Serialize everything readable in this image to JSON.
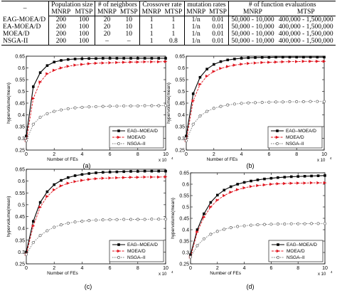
{
  "table": {
    "headers": {
      "algorithm": "–",
      "population_size": "Population size",
      "neighbors": "# of neighbors",
      "crossover": "Crossover rate",
      "mutation": "mutation rates",
      "function_evals": "# of function evaluations"
    },
    "subheaders": [
      "MNRP",
      "MTSP",
      "MNRP",
      "MTSP",
      "MNRP",
      "MTSP",
      "MNRP",
      "MTSP",
      "MNRP",
      "MTSP"
    ],
    "rows": [
      {
        "algorithm": "EAG-MOEA/D",
        "cells": [
          "200",
          "100",
          "20",
          "10",
          "1",
          "1",
          "1/n",
          "0.01",
          "50,000 - 10,000",
          "400,000 - 1,500,000"
        ]
      },
      {
        "algorithm": "EA-MOEA/D",
        "cells": [
          "200",
          "100",
          "20",
          "10",
          "1",
          "1",
          "1/n",
          "0.01",
          "50,000 - 10,000",
          "400,000 - 1,500,000"
        ]
      },
      {
        "algorithm": "MOEA/D",
        "cells": [
          "200",
          "100",
          "20",
          "10",
          "1",
          "1",
          "1/n",
          "0.01",
          "50,000 - 10,000",
          "400,000 - 1,500,000"
        ]
      },
      {
        "algorithm": "NSGA-II",
        "cells": [
          "200",
          "100",
          "–",
          "–",
          "1",
          "0.8",
          "1/n",
          "0.01",
          "50,000 - 10,000",
          "400,000 - 1,500,000"
        ]
      }
    ]
  },
  "colors": {
    "eag": "#000000",
    "moead": "#e0141e",
    "nsga": "#707070"
  },
  "chart_data": [
    {
      "type": "line",
      "panel": "(a)",
      "xlabel": "Number of FEs",
      "ylabel": "hypervolume(mean)",
      "x_exponent": "x 10",
      "x_exponent_power": "4",
      "xlim": [
        0,
        10
      ],
      "ylim": [
        0.25,
        0.65
      ],
      "xticks": [
        "0",
        "2",
        "4",
        "6",
        "8",
        "10"
      ],
      "yticks": [
        "0.25",
        "0.3",
        "0.35",
        "0.4",
        "0.45",
        "0.5",
        "0.55",
        "0.6",
        "0.65"
      ],
      "legend": "bottom-right",
      "x": [
        0,
        0.5,
        1,
        1.5,
        2,
        2.5,
        3,
        3.5,
        4,
        4.5,
        5,
        5.5,
        6,
        6.5,
        7,
        7.5,
        8,
        8.5,
        9,
        9.5,
        10
      ],
      "series": [
        {
          "name": "EAG–MOEA/D",
          "values": [
            0.31,
            0.52,
            0.58,
            0.61,
            0.625,
            0.632,
            0.636,
            0.638,
            0.639,
            0.64,
            0.64,
            0.641,
            0.641,
            0.641,
            0.641,
            0.641,
            0.641,
            0.641,
            0.641,
            0.641,
            0.641
          ]
        },
        {
          "name": "MOEA/D",
          "values": [
            0.29,
            0.47,
            0.54,
            0.575,
            0.59,
            0.6,
            0.607,
            0.612,
            0.615,
            0.618,
            0.62,
            0.621,
            0.622,
            0.623,
            0.624,
            0.625,
            0.625,
            0.626,
            0.626,
            0.626,
            0.627
          ]
        },
        {
          "name": "NSGA–II",
          "values": [
            0.29,
            0.36,
            0.39,
            0.405,
            0.415,
            0.421,
            0.426,
            0.43,
            0.432,
            0.434,
            0.435,
            0.436,
            0.437,
            0.437,
            0.438,
            0.438,
            0.438,
            0.439,
            0.439,
            0.439,
            0.44
          ]
        }
      ]
    },
    {
      "type": "line",
      "panel": "(b)",
      "xlabel": "Number of FEs",
      "ylabel": "hypervolume(mean)",
      "x_exponent": "x 10",
      "x_exponent_power": "4",
      "xlim": [
        0,
        10
      ],
      "ylim": [
        0.25,
        0.65
      ],
      "xticks": [
        "0",
        "2",
        "4",
        "6",
        "8",
        "10"
      ],
      "yticks": [
        "0.25",
        "0.3",
        "0.35",
        "0.4",
        "0.45",
        "0.5",
        "0.55",
        "0.6",
        "0.65"
      ],
      "legend": "bottom-right",
      "x": [
        0,
        0.5,
        1,
        1.5,
        2,
        2.5,
        3,
        3.5,
        4,
        4.5,
        5,
        5.5,
        6,
        6.5,
        7,
        7.5,
        8,
        8.5,
        9,
        9.5,
        10
      ],
      "series": [
        {
          "name": "EAG–MOEA/D",
          "values": [
            0.31,
            0.49,
            0.56,
            0.595,
            0.615,
            0.627,
            0.634,
            0.638,
            0.641,
            0.643,
            0.644,
            0.645,
            0.645,
            0.646,
            0.646,
            0.646,
            0.646,
            0.646,
            0.646,
            0.646,
            0.646
          ]
        },
        {
          "name": "MOEA/D",
          "values": [
            0.29,
            0.46,
            0.53,
            0.565,
            0.585,
            0.598,
            0.606,
            0.612,
            0.616,
            0.619,
            0.621,
            0.623,
            0.624,
            0.625,
            0.626,
            0.627,
            0.627,
            0.628,
            0.628,
            0.628,
            0.628
          ]
        },
        {
          "name": "NSGA–II",
          "values": [
            0.29,
            0.36,
            0.395,
            0.415,
            0.428,
            0.436,
            0.442,
            0.446,
            0.449,
            0.451,
            0.452,
            0.453,
            0.454,
            0.455,
            0.455,
            0.456,
            0.456,
            0.456,
            0.457,
            0.457,
            0.457
          ]
        }
      ]
    },
    {
      "type": "line",
      "panel": "(c)",
      "xlabel": "Number of FEs",
      "ylabel": "hypervolume(mean)",
      "x_exponent": "x 10",
      "x_exponent_power": "4",
      "xlim": [
        0,
        10
      ],
      "ylim": [
        0.25,
        0.65
      ],
      "xticks": [
        "0",
        "2",
        "4",
        "6",
        "8",
        "10"
      ],
      "yticks": [
        "0.25",
        "0.3",
        "0.35",
        "0.4",
        "0.45",
        "0.5",
        "0.55",
        "0.6",
        "0.65"
      ],
      "legend": "bottom-right",
      "x": [
        0,
        0.5,
        1,
        1.5,
        2,
        2.5,
        3,
        3.5,
        4,
        4.5,
        5,
        5.5,
        6,
        6.5,
        7,
        7.5,
        8,
        8.5,
        9,
        9.5,
        10
      ],
      "series": [
        {
          "name": "EAG–MOEA/D",
          "values": [
            0.3,
            0.43,
            0.51,
            0.555,
            0.585,
            0.603,
            0.615,
            0.623,
            0.628,
            0.632,
            0.635,
            0.637,
            0.638,
            0.639,
            0.64,
            0.641,
            0.641,
            0.642,
            0.642,
            0.642,
            0.642
          ]
        },
        {
          "name": "MOEA/D",
          "values": [
            0.29,
            0.41,
            0.49,
            0.535,
            0.563,
            0.58,
            0.591,
            0.598,
            0.603,
            0.607,
            0.61,
            0.612,
            0.613,
            0.614,
            0.615,
            0.616,
            0.616,
            0.617,
            0.617,
            0.617,
            0.618
          ]
        },
        {
          "name": "NSGA–II",
          "values": [
            0.29,
            0.34,
            0.37,
            0.39,
            0.405,
            0.415,
            0.422,
            0.427,
            0.43,
            0.433,
            0.435,
            0.436,
            0.437,
            0.437,
            0.438,
            0.438,
            0.438,
            0.438,
            0.439,
            0.439,
            0.439
          ]
        }
      ]
    },
    {
      "type": "line",
      "panel": "(d)",
      "xlabel": "Number of FEs",
      "ylabel": "hypervolume(mean)",
      "x_exponent": "x 10",
      "x_exponent_power": "4",
      "xlim": [
        0,
        10
      ],
      "ylim": [
        0.25,
        0.65
      ],
      "xticks": [
        "0",
        "2",
        "4",
        "6",
        "8",
        "10"
      ],
      "yticks": [
        "0.25",
        "0.3",
        "0.35",
        "0.4",
        "0.45",
        "0.5",
        "0.55",
        "0.6",
        "0.65"
      ],
      "legend": "bottom-right",
      "x": [
        0,
        0.5,
        1,
        1.5,
        2,
        2.5,
        3,
        3.5,
        4,
        4.5,
        5,
        5.5,
        6,
        6.5,
        7,
        7.5,
        8,
        8.5,
        9,
        9.5,
        10
      ],
      "series": [
        {
          "name": "EAG–MOEA/D",
          "values": [
            0.29,
            0.4,
            0.47,
            0.52,
            0.552,
            0.574,
            0.589,
            0.6,
            0.608,
            0.614,
            0.619,
            0.623,
            0.626,
            0.629,
            0.631,
            0.633,
            0.634,
            0.635,
            0.636,
            0.637,
            0.638
          ]
        },
        {
          "name": "MOEA/D",
          "values": [
            0.28,
            0.39,
            0.455,
            0.5,
            0.53,
            0.55,
            0.565,
            0.576,
            0.584,
            0.59,
            0.594,
            0.597,
            0.6,
            0.602,
            0.603,
            0.604,
            0.605,
            0.605,
            0.606,
            0.606,
            0.606
          ]
        },
        {
          "name": "NSGA–II",
          "values": [
            0.28,
            0.33,
            0.36,
            0.38,
            0.393,
            0.402,
            0.409,
            0.414,
            0.417,
            0.42,
            0.422,
            0.423,
            0.424,
            0.425,
            0.425,
            0.426,
            0.426,
            0.426,
            0.427,
            0.427,
            0.427
          ]
        }
      ]
    }
  ]
}
